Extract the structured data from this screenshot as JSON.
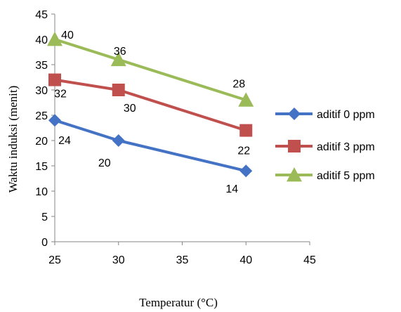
{
  "chart_data": {
    "type": "scatter",
    "xlabel": "Temperatur (°C)",
    "ylabel": "Waktu induksi (menit)",
    "xlim": [
      25,
      45
    ],
    "ylim": [
      0,
      45
    ],
    "xticks": [
      25,
      30,
      35,
      40,
      45
    ],
    "yticks": [
      0,
      5,
      10,
      15,
      20,
      25,
      30,
      35,
      40,
      45
    ],
    "grid": false,
    "legend_position": "right",
    "series": [
      {
        "name": "aditif 0 ppm",
        "x": [
          25,
          30,
          40
        ],
        "y": [
          24,
          20,
          14
        ],
        "labels": [
          "24",
          "20",
          "14"
        ],
        "color": "#4472c4",
        "marker": "diamond"
      },
      {
        "name": "aditif 3 ppm",
        "x": [
          25,
          30,
          40
        ],
        "y": [
          32,
          30,
          22
        ],
        "labels": [
          "32",
          "30",
          "22"
        ],
        "color": "#c0504d",
        "marker": "square"
      },
      {
        "name": "aditif 5 ppm",
        "x": [
          25,
          30,
          40
        ],
        "y": [
          40,
          36,
          28
        ],
        "labels": [
          "40",
          "36",
          "28"
        ],
        "color": "#9bbb59",
        "marker": "triangle"
      }
    ]
  }
}
